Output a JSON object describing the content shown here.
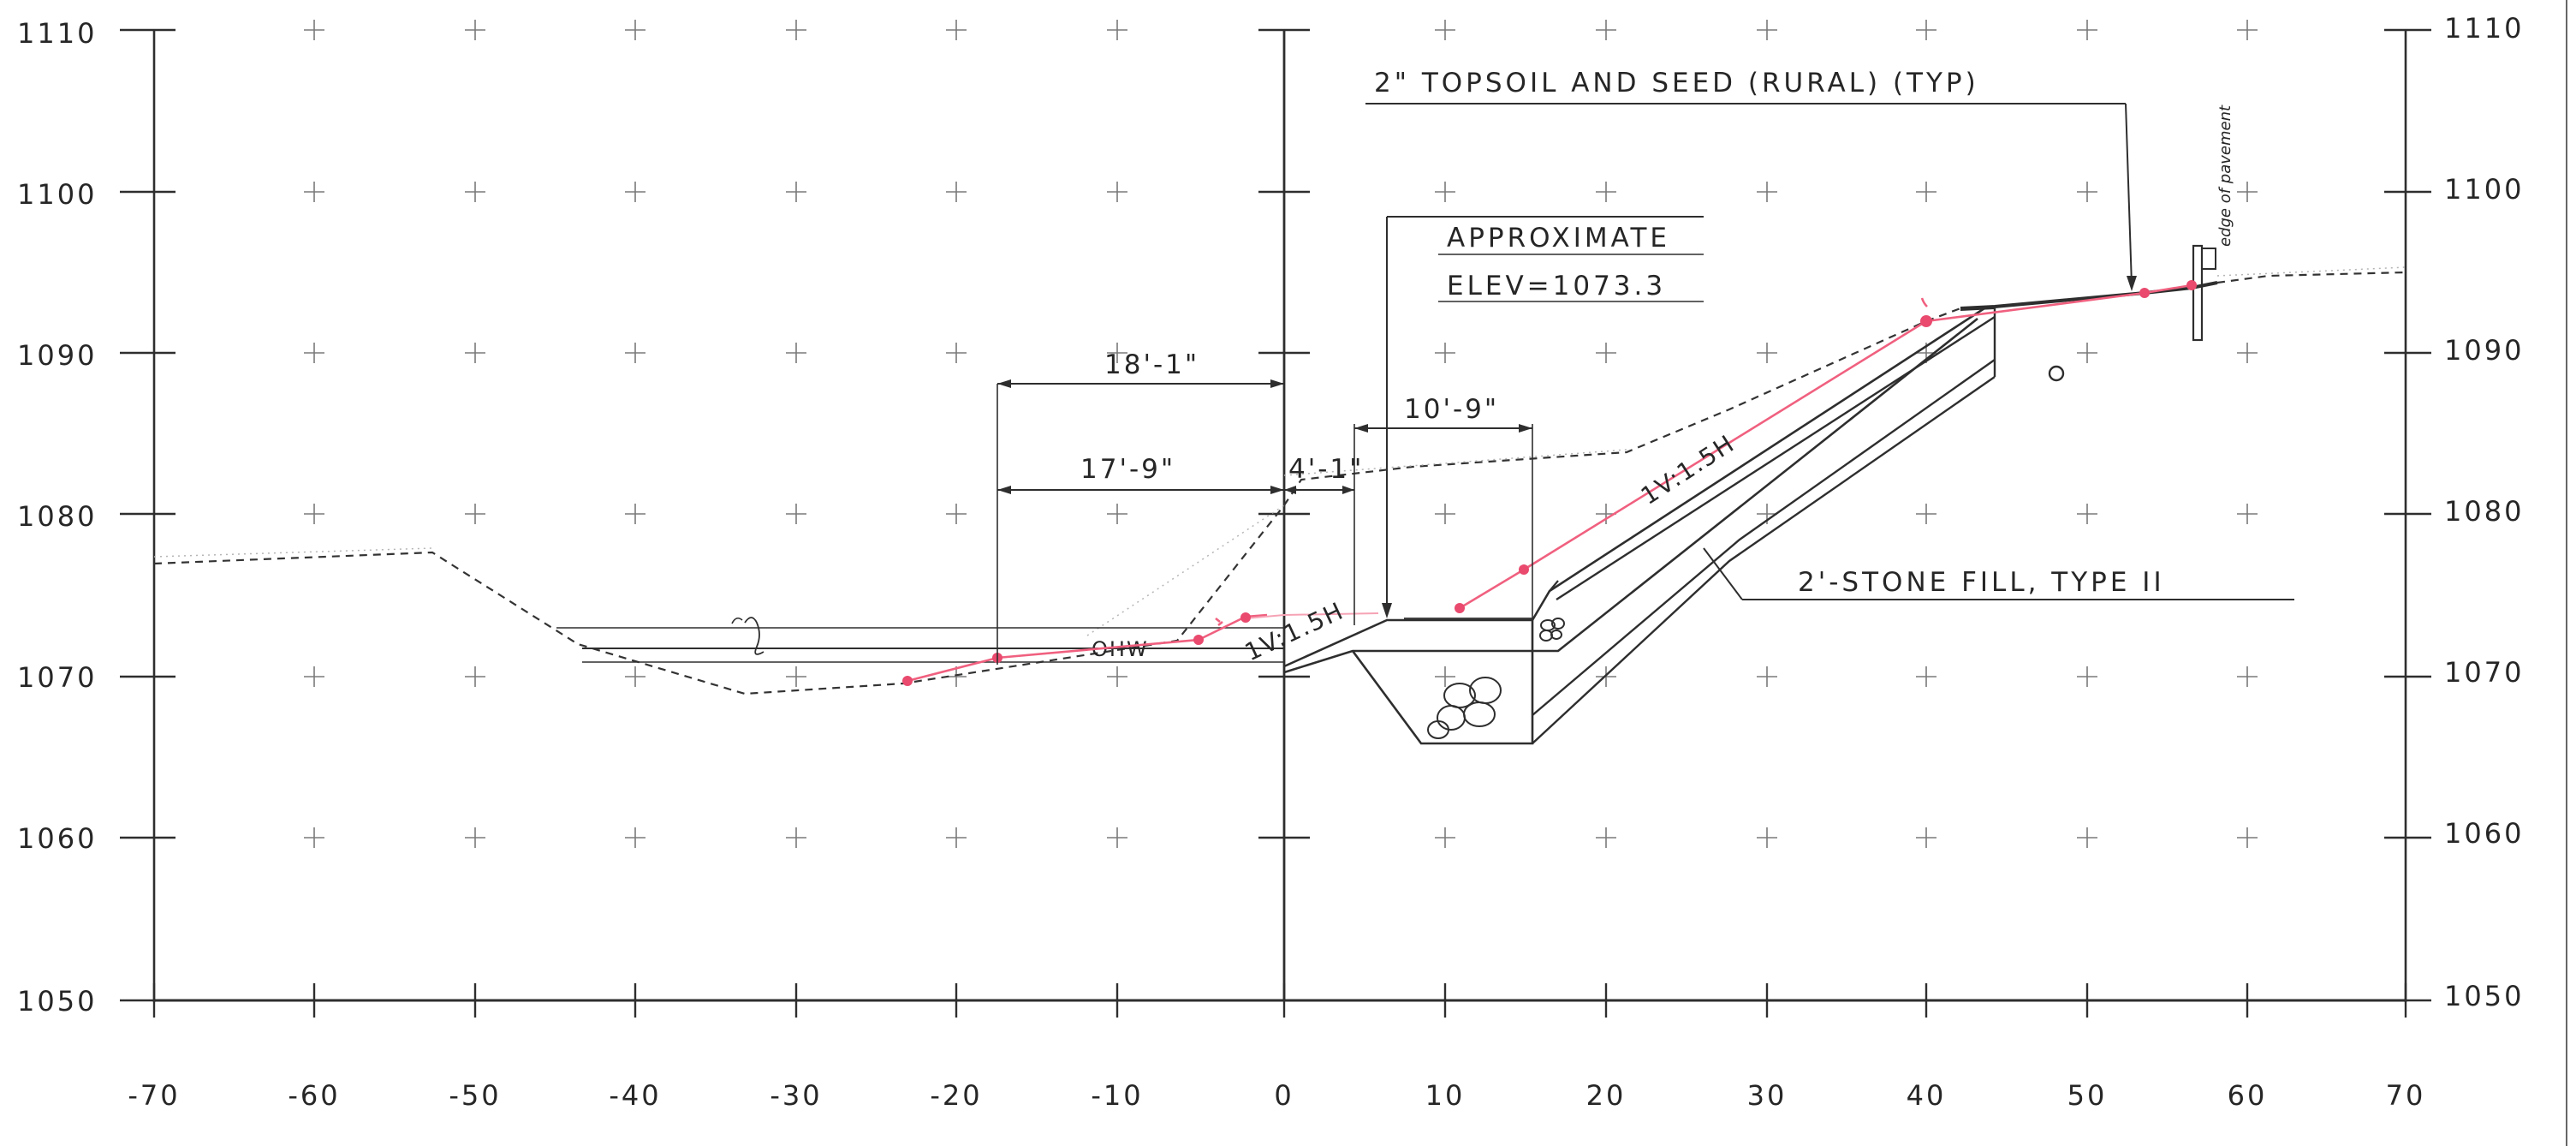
{
  "drawing": {
    "y_axis_left_labels": [
      "1110",
      "1100",
      "1090",
      "1080",
      "1070",
      "1060",
      "1050"
    ],
    "y_axis_right_labels": [
      "1110",
      "1100",
      "1090",
      "1080",
      "1070",
      "1060",
      "1050"
    ],
    "x_axis_labels": [
      "-70",
      "-60",
      "-50",
      "-40",
      "-30",
      "-20",
      "-10",
      "0",
      "10",
      "20",
      "30",
      "40",
      "50",
      "60",
      "70"
    ],
    "notes": {
      "topsoil": "2\" TOPSOIL AND SEED (RURAL) (TYP)",
      "approx_line1": "APPROXIMATE",
      "approx_line2": "ELEV=1073.3",
      "stone_fill": "2'-STONE FILL, TYPE II",
      "ohw": "OHW",
      "edge_of_pavement": "edge of pavement"
    },
    "dimensions": {
      "d1": "18'-1\"",
      "d2": "17'-9\"",
      "d3": "4'-1\"",
      "d4": "10'-9\""
    },
    "slopes": {
      "toe": "1V:1.5H",
      "upper": "1V:1.5H"
    },
    "colors": {
      "ink": "#2e2e2e",
      "survey_red": "#e94a6e",
      "grid": "#7a7a7a"
    }
  }
}
